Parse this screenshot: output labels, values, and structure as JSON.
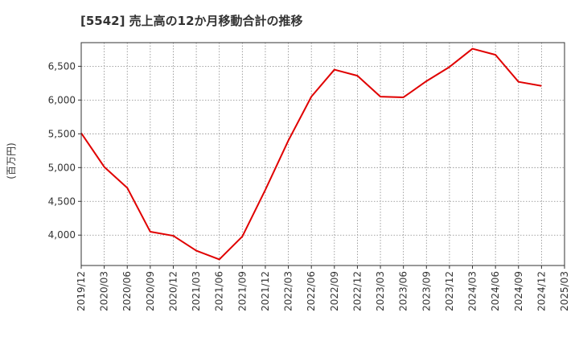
{
  "chart_data": {
    "type": "line",
    "title": "[5542]  売上高の12か月移動合計の推移",
    "ylabel": "(百万円)",
    "xlabel": "",
    "ylim": [
      3550,
      6850
    ],
    "yticks": [
      4000,
      4500,
      5000,
      5500,
      6000,
      6500
    ],
    "ytick_labels": [
      "4,000",
      "4,500",
      "5,000",
      "5,500",
      "6,000",
      "6,500"
    ],
    "xtick_labels": [
      "2019/12",
      "2020/03",
      "2020/06",
      "2020/09",
      "2020/12",
      "2021/03",
      "2021/06",
      "2021/09",
      "2021/12",
      "2022/03",
      "2022/06",
      "2022/09",
      "2022/12",
      "2023/03",
      "2023/06",
      "2023/09",
      "2023/12",
      "2024/03",
      "2024/06",
      "2024/09",
      "2024/12",
      "2025/03"
    ],
    "grid": true,
    "series": [
      {
        "name": "売上高の12か月移動合計",
        "color": "#e00000",
        "x": [
          "2019/12",
          "2020/03",
          "2020/06",
          "2020/09",
          "2020/12",
          "2021/03",
          "2021/06",
          "2021/09",
          "2021/12",
          "2022/03",
          "2022/06",
          "2022/09",
          "2022/12",
          "2023/03",
          "2023/06",
          "2023/09",
          "2023/12",
          "2024/03",
          "2024/06",
          "2024/09",
          "2024/12"
        ],
        "values": [
          5510,
          5010,
          4700,
          4050,
          3990,
          3770,
          3640,
          3980,
          4670,
          5400,
          6050,
          6450,
          6360,
          6050,
          6040,
          6280,
          6490,
          6760,
          6670,
          6270,
          6210
        ]
      }
    ]
  }
}
